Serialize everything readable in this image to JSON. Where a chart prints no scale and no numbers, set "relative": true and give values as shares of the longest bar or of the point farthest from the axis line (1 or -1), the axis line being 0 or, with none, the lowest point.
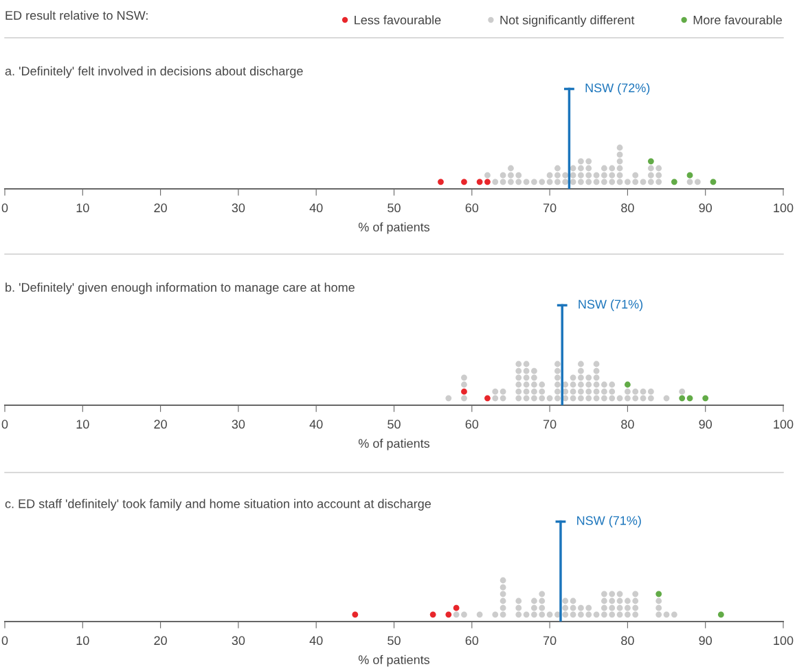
{
  "chart_data": [
    {
      "type": "scatter",
      "title": "a. 'Definitely' felt involved in decisions about discharge",
      "xlabel": "% of patients",
      "legend_title": "ED result relative to NSW:",
      "legend": "top right",
      "marker": "circle",
      "tick_labels": "x",
      "relative": true,
      "xlim": [
        0,
        100
      ],
      "xticks": [
        0,
        10,
        20,
        30,
        40,
        50,
        60,
        70,
        80,
        90,
        100
      ],
      "ref_lines": [
        {
          "axis": "x",
          "value": 72.5,
          "label": "NSW (72%)",
          "color": "#1b75bc"
        }
      ],
      "series": [
        {
          "name": "Less favourable",
          "color": "#e8262b",
          "x": [
            56,
            59,
            61,
            62
          ],
          "values": [
            0.17,
            0.17,
            0.17,
            0.17
          ]
        },
        {
          "name": "Not significantly different",
          "color": "#cccccc",
          "x": [
            62,
            63,
            64,
            64,
            65,
            65,
            65,
            66,
            66,
            67,
            68,
            69,
            70,
            70,
            71,
            71,
            71,
            72,
            72,
            73,
            73,
            73,
            74,
            74,
            74,
            74,
            75,
            75,
            75,
            75,
            76,
            76,
            77,
            77,
            77,
            78,
            78,
            78,
            79,
            79,
            79,
            79,
            79,
            79,
            80,
            81,
            81,
            82,
            83,
            83,
            83,
            84,
            84,
            84,
            88,
            89
          ],
          "values": [
            0.33,
            0.17,
            0.17,
            0.33,
            0.17,
            0.33,
            0.5,
            0.17,
            0.33,
            0.17,
            0.17,
            0.17,
            0.17,
            0.33,
            0.17,
            0.33,
            0.5,
            0.17,
            0.33,
            0.17,
            0.33,
            0.5,
            0.17,
            0.33,
            0.5,
            0.67,
            0.17,
            0.33,
            0.5,
            0.67,
            0.17,
            0.33,
            0.17,
            0.33,
            0.5,
            0.17,
            0.33,
            0.5,
            0.17,
            0.33,
            0.5,
            0.67,
            0.83,
            1,
            0.17,
            0.17,
            0.33,
            0.17,
            0.17,
            0.33,
            0.5,
            0.17,
            0.33,
            0.5,
            0.17,
            0.17
          ]
        },
        {
          "name": "More favourable",
          "color": "#62ab47",
          "x": [
            83,
            86,
            88,
            91
          ],
          "values": [
            0.67,
            0.17,
            0.33,
            0.17
          ]
        }
      ]
    },
    {
      "type": "scatter",
      "title": "b. 'Definitely' given enough information to manage care at home",
      "xlabel": "% of patients",
      "marker": "circle",
      "tick_labels": "x",
      "relative": true,
      "xlim": [
        0,
        100
      ],
      "xticks": [
        0,
        10,
        20,
        30,
        40,
        50,
        60,
        70,
        80,
        90,
        100
      ],
      "ref_lines": [
        {
          "axis": "x",
          "value": 71.6,
          "label": "NSW (71%)",
          "color": "#1b75bc"
        }
      ],
      "series": [
        {
          "color": "#e8262b",
          "x": [
            59,
            62
          ],
          "values": [
            0.33,
            0.17
          ]
        },
        {
          "color": "#cccccc",
          "x": [
            57,
            59,
            59,
            59,
            63,
            63,
            64,
            64,
            66,
            66,
            66,
            66,
            66,
            66,
            67,
            67,
            67,
            67,
            67,
            67,
            68,
            68,
            68,
            68,
            68,
            69,
            69,
            69,
            70,
            71,
            71,
            71,
            71,
            71,
            71,
            72,
            72,
            72,
            73,
            73,
            73,
            73,
            74,
            74,
            74,
            74,
            74,
            74,
            75,
            75,
            75,
            75,
            76,
            76,
            76,
            76,
            76,
            76,
            77,
            77,
            77,
            78,
            78,
            78,
            79,
            80,
            80,
            81,
            81,
            82,
            82,
            83,
            83,
            85,
            87
          ],
          "values": [
            0.17,
            0.17,
            0.5,
            0.67,
            0.17,
            0.33,
            0.17,
            0.33,
            0.17,
            0.33,
            0.5,
            0.67,
            0.83,
            1,
            0.17,
            0.33,
            0.5,
            0.67,
            0.83,
            1,
            0.17,
            0.33,
            0.5,
            0.67,
            0.83,
            0.17,
            0.33,
            0.5,
            0.17,
            0.17,
            0.33,
            0.5,
            0.67,
            0.83,
            1,
            0.17,
            0.33,
            0.5,
            0.17,
            0.33,
            0.5,
            0.67,
            0.17,
            0.33,
            0.5,
            0.67,
            0.83,
            1,
            0.17,
            0.33,
            0.5,
            0.67,
            0.17,
            0.33,
            0.5,
            0.67,
            0.83,
            1,
            0.17,
            0.33,
            0.5,
            0.17,
            0.33,
            0.5,
            0.17,
            0.17,
            0.33,
            0.17,
            0.33,
            0.17,
            0.33,
            0.17,
            0.33,
            0.17,
            0.33
          ]
        },
        {
          "color": "#62ab47",
          "x": [
            80,
            87,
            88,
            90
          ],
          "values": [
            0.5,
            0.17,
            0.17,
            0.17
          ]
        }
      ]
    },
    {
      "type": "scatter",
      "title": "c. ED staff 'definitely' took family and home situation into account at discharge",
      "xlabel": "% of patients",
      "marker": "circle",
      "tick_labels": "x",
      "relative": true,
      "xlim": [
        0,
        100
      ],
      "xticks": [
        0,
        10,
        20,
        30,
        40,
        50,
        60,
        70,
        80,
        90,
        100
      ],
      "ref_lines": [
        {
          "axis": "x",
          "value": 71.4,
          "label": "NSW (71%)",
          "color": "#1b75bc"
        }
      ],
      "series": [
        {
          "color": "#e8262b",
          "x": [
            45,
            55,
            57,
            58
          ],
          "values": [
            0.17,
            0.17,
            0.17,
            0.33
          ]
        },
        {
          "color": "#cccccc",
          "x": [
            58,
            59,
            61,
            63,
            64,
            64,
            64,
            64,
            64,
            64,
            66,
            66,
            66,
            67,
            68,
            68,
            68,
            69,
            69,
            69,
            69,
            70,
            71,
            72,
            72,
            72,
            73,
            73,
            73,
            74,
            74,
            75,
            75,
            76,
            77,
            77,
            77,
            77,
            78,
            78,
            78,
            78,
            79,
            79,
            79,
            79,
            80,
            80,
            80,
            81,
            81,
            81,
            81,
            84,
            84,
            84,
            85,
            86
          ],
          "values": [
            0.17,
            0.17,
            0.17,
            0.17,
            0.17,
            0.33,
            0.5,
            0.67,
            0.83,
            1,
            0.17,
            0.33,
            0.5,
            0.17,
            0.17,
            0.33,
            0.5,
            0.17,
            0.33,
            0.5,
            0.67,
            0.17,
            0.17,
            0.17,
            0.33,
            0.5,
            0.17,
            0.33,
            0.5,
            0.17,
            0.33,
            0.17,
            0.33,
            0.17,
            0.17,
            0.33,
            0.5,
            0.67,
            0.17,
            0.33,
            0.5,
            0.67,
            0.17,
            0.33,
            0.5,
            0.67,
            0.17,
            0.33,
            0.5,
            0.17,
            0.33,
            0.5,
            0.67,
            0.17,
            0.33,
            0.5,
            0.17,
            0.17
          ]
        },
        {
          "color": "#62ab47",
          "x": [
            84,
            92
          ],
          "values": [
            0.67,
            0.17
          ]
        }
      ]
    }
  ]
}
